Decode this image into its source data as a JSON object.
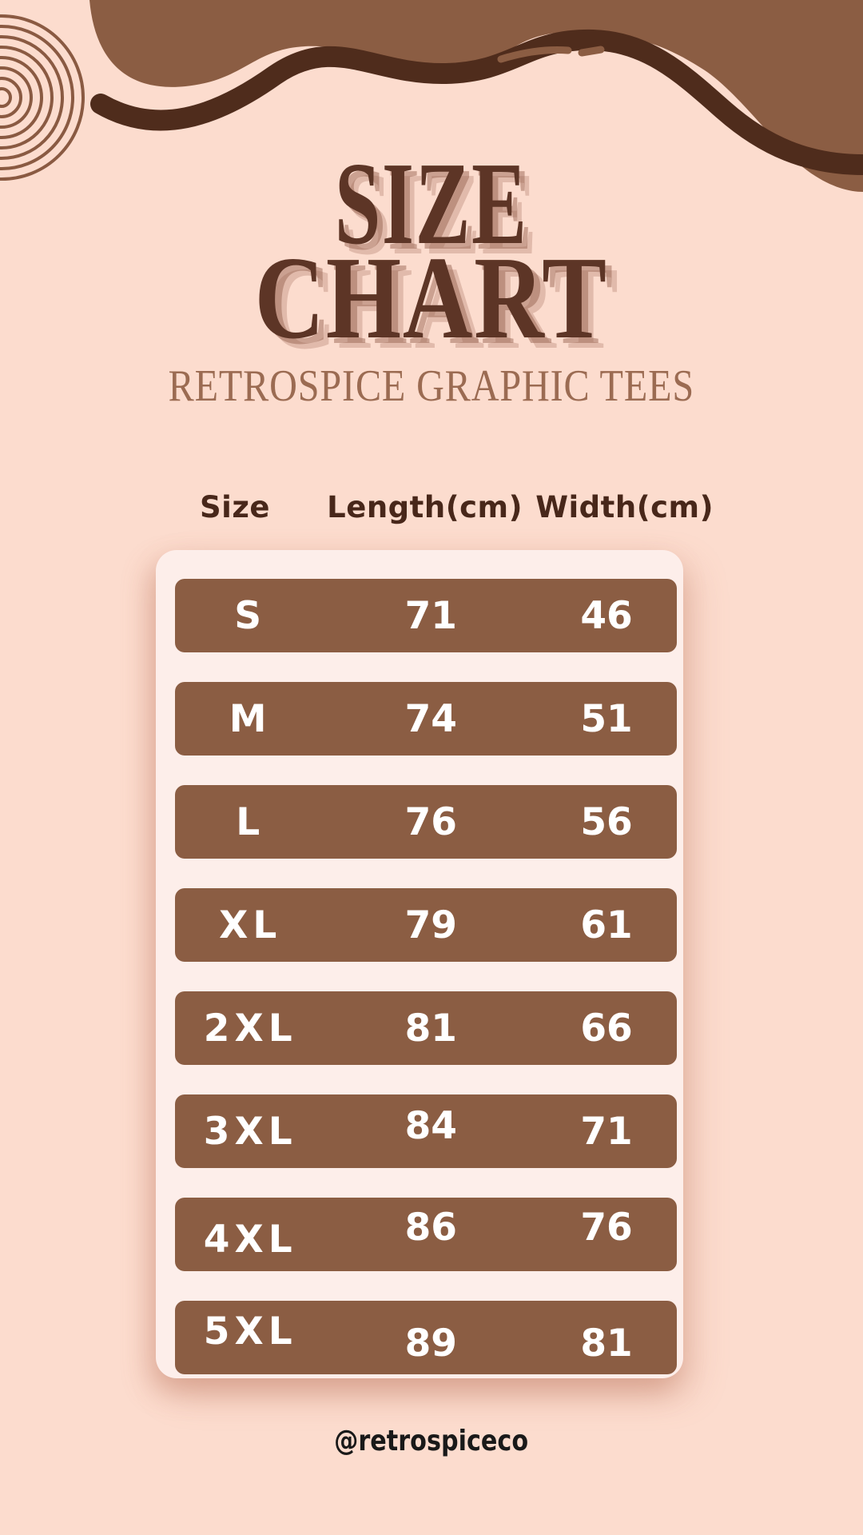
{
  "title": {
    "line1": "SIZE",
    "line2": "CHART"
  },
  "subtitle": "RETROSPICE GRAPHIC TEES",
  "chart_data": {
    "type": "table",
    "title": "SIZE CHART",
    "subtitle": "RETROSPICE GRAPHIC TEES",
    "columns": [
      "Size",
      "Length(cm)",
      "Width(cm)"
    ],
    "rows": [
      [
        "S",
        71,
        46
      ],
      [
        "M",
        74,
        51
      ],
      [
        "L",
        76,
        56
      ],
      [
        "XL",
        79,
        61
      ],
      [
        "2XL",
        81,
        66
      ],
      [
        "3XL",
        84,
        71
      ],
      [
        "4XL",
        86,
        76
      ],
      [
        "5XL",
        89,
        81
      ]
    ]
  },
  "footer": {
    "handle": "@retrospiceco"
  },
  "icons": {
    "spiral": "concentric-circles-decoration",
    "blob": "wavy-blob-decoration",
    "dashes": "two-accent-dashes"
  },
  "colors": {
    "background": "#fcdcce",
    "blob_fill": "#8b5d43",
    "blob_outline": "#4f2c1c",
    "title_text": "#5d3526",
    "title_shadow": "#9a6a55",
    "subtitle_text": "#9b6b52",
    "header_text": "#48271a",
    "row_fill": "#8b5d43",
    "row_text": "#ffffff",
    "card_background": "#fdeeea",
    "caption_text": "#191919",
    "spiral_stroke": "#8a5a42"
  }
}
